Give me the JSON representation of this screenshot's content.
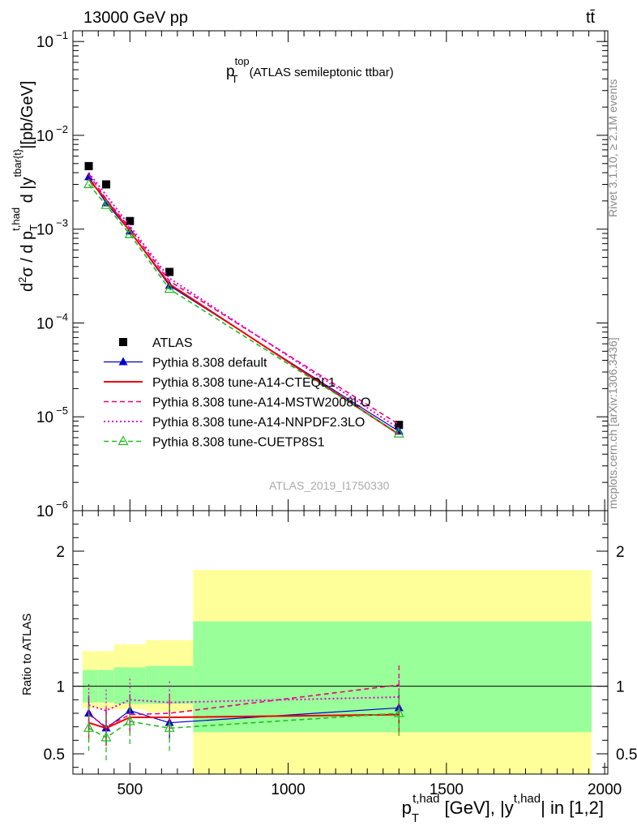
{
  "header": {
    "left": "13000 GeV pp",
    "right": "tt̄"
  },
  "upper_title": {
    "main": "p",
    "sup": "top",
    "sub": "T",
    "rest": "(ATLAS semileptonic ttbar)"
  },
  "ylabel_main": {
    "p1": "d",
    "p1sup": "2",
    "p2": "σ / d p",
    "p2sub": "T",
    "p2sup": "t,had",
    "p3": " d |y",
    "p3sup": "tbar{t}",
    "p4": "|[pb/GeV]"
  },
  "side_text": {
    "rivet": "Rivet 3.1.10, ≥ 2.1M events",
    "mcplots": "mcplots.cern.ch [arXiv:1306.3436]"
  },
  "watermark": "ATLAS_2019_I1750330",
  "ratio_ylabel": "Ratio to ATLAS",
  "xlabel": {
    "p": "p",
    "sub": "T",
    "sup": "t,had",
    "mid": " [GeV], |y",
    "sup2": "t,had",
    "end": "| in [1,2]"
  },
  "colors": {
    "data": "#000000",
    "default": "#0000cc",
    "cteq": "#ee0000",
    "mstw": "#ee0077",
    "nnpdf": "#dd00dd",
    "cuetp": "#22bb22",
    "band_inner": "#99ff99",
    "band_outer": "#ffff99"
  },
  "chart_data": {
    "type": "scatter",
    "x_range": [
      320,
      2010
    ],
    "main_ylim": [
      1e-06,
      0.13
    ],
    "main_yscale": "log",
    "main_yticks": [
      {
        "v": 1e-06,
        "base": "10",
        "exp": "−6"
      },
      {
        "v": 1e-05,
        "base": "10",
        "exp": "−5"
      },
      {
        "v": 0.0001,
        "base": "10",
        "exp": "−4"
      },
      {
        "v": 0.001,
        "base": "10",
        "exp": "−3"
      },
      {
        "v": 0.01,
        "base": "10",
        "exp": "−2"
      },
      {
        "v": 0.1,
        "base": "10",
        "exp": "−1"
      }
    ],
    "ratio_ylim": [
      0.35,
      2.3
    ],
    "ratio_yticks": [
      {
        "v": 0.5,
        "label": "0.5"
      },
      {
        "v": 1,
        "label": "1"
      },
      {
        "v": 2,
        "label": "2"
      }
    ],
    "x_ticks": [
      {
        "v": 500,
        "label": "500"
      },
      {
        "v": 1000,
        "label": "1000"
      },
      {
        "v": 1500,
        "label": "1500"
      },
      {
        "v": 2000,
        "label": "2000"
      }
    ],
    "bins": [
      [
        340,
        400
      ],
      [
        400,
        450
      ],
      [
        450,
        550
      ],
      [
        550,
        700
      ],
      [
        700,
        2000
      ]
    ],
    "x_points": [
      370,
      425,
      500,
      625,
      1350
    ],
    "series": [
      {
        "name": "ATLAS",
        "key": "data",
        "marker": "square",
        "line": "none",
        "values": [
          0.0047,
          0.003,
          0.00122,
          0.00035,
          8.2e-06
        ],
        "band_inner": [
          [
            0.88,
            1.12
          ],
          [
            0.88,
            1.12
          ],
          [
            0.87,
            1.14
          ],
          [
            0.87,
            1.15
          ],
          [
            0.66,
            1.48
          ]
        ],
        "band_outer": [
          [
            0.84,
            1.26
          ],
          [
            0.83,
            1.26
          ],
          [
            0.83,
            1.31
          ],
          [
            0.81,
            1.34
          ],
          [
            0.35,
            1.86
          ]
        ]
      },
      {
        "name": "Pythia 8.308 default",
        "key": "default",
        "marker": "triangle-filled",
        "line": "solid",
        "values": [
          0.0036,
          0.0019,
          0.00095,
          0.00025,
          7e-06
        ],
        "ratio": [
          0.8,
          0.69,
          0.82,
          0.73,
          0.84
        ]
      },
      {
        "name": "Pythia 8.308 tune-A14-CTEQL1",
        "key": "cteq",
        "marker": "none",
        "line": "solid-thick",
        "values": [
          0.0034,
          0.00205,
          0.00095,
          0.00026,
          6.5e-06
        ],
        "ratio": [
          0.73,
          0.69,
          0.77,
          0.77,
          0.79
        ]
      },
      {
        "name": "Pythia 8.308 tune-A14-MSTW2008LO",
        "key": "mstw",
        "marker": "none",
        "line": "dashed",
        "values": [
          0.0038,
          0.0021,
          0.00102,
          0.00028,
          8.3e-06
        ],
        "ratio": [
          0.79,
          0.7,
          0.79,
          0.8,
          1.01
        ]
      },
      {
        "name": "Pythia 8.308 tune-A14-NNPDF2.3LO",
        "key": "nnpdf",
        "marker": "none",
        "line": "dotted",
        "values": [
          0.004,
          0.0023,
          0.00108,
          0.0003,
          7.5e-06
        ],
        "ratio": [
          0.86,
          0.82,
          0.9,
          0.88,
          0.92
        ]
      },
      {
        "name": "Pythia 8.308 tune-CUETP8S1",
        "key": "cuetp",
        "marker": "triangle-open",
        "line": "dashed",
        "values": [
          0.003,
          0.0018,
          0.00088,
          0.00023,
          6.6e-06
        ],
        "ratio": [
          0.69,
          0.62,
          0.74,
          0.69,
          0.8
        ]
      }
    ]
  }
}
